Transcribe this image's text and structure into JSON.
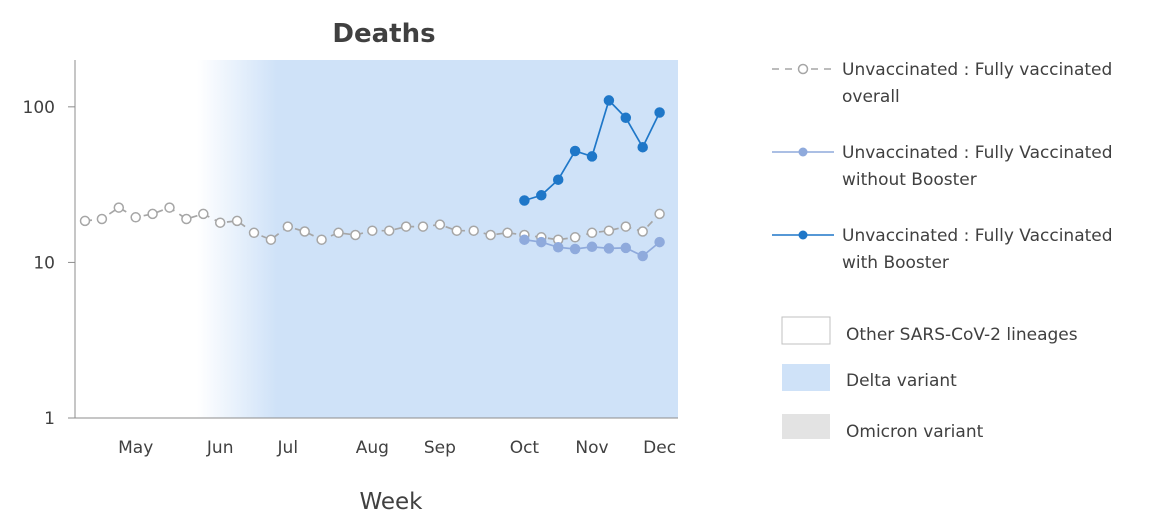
{
  "chart_data": {
    "type": "line",
    "title": "Deaths",
    "xlabel": "Week",
    "ylabel": "",
    "yscale": "log",
    "ylim": [
      1,
      200
    ],
    "yticks": [
      1,
      10,
      100
    ],
    "ytick_labels": [
      "1",
      "10",
      "100"
    ],
    "x_tick_labels": [
      "May",
      "Jun",
      "Jul",
      "Aug",
      "Sep",
      "Oct",
      "Nov",
      "Dec"
    ],
    "x_tick_week_index": [
      3,
      8,
      12,
      17,
      21,
      26,
      30,
      34
    ],
    "week_count": 35,
    "series": [
      {
        "name": "Unvaccinated : Fully vaccinated overall",
        "color": "#a6a6a6",
        "style": "dashed-open-circle",
        "start_week": 0,
        "values": [
          18.5,
          19,
          22.5,
          19.5,
          20.5,
          22.5,
          19,
          20.5,
          18,
          18.5,
          15.5,
          14,
          17,
          15.8,
          14,
          15.5,
          15,
          16,
          16,
          17,
          17,
          17.5,
          16,
          16,
          15,
          15.5,
          15,
          14.5,
          14,
          14.5,
          15.5,
          16,
          17,
          15.8,
          20.5
        ]
      },
      {
        "name": "Unvaccinated : Fully Vaccinated without Booster",
        "color": "#8faadc",
        "style": "solid-filled-circle",
        "start_week": 26,
        "values": [
          14,
          13.5,
          12.5,
          12.2,
          12.6,
          12.3,
          12.4,
          11,
          13.5
        ]
      },
      {
        "name": "Unvaccinated : Fully Vaccinated with Booster",
        "color": "#1f77c8",
        "style": "solid-filled-circle",
        "start_week": 26,
        "values": [
          25,
          27,
          34,
          52,
          48,
          110,
          85,
          55,
          92
        ]
      }
    ],
    "variant_periods": [
      {
        "name": "Other SARS-CoV-2 lineages",
        "color": "#ffffff",
        "start_week": -1,
        "end_week": 6
      },
      {
        "name": "Delta variant",
        "color": "#cfe2f8",
        "start_week": 6,
        "end_week": 35
      }
    ],
    "legend_position": "right",
    "grid": false,
    "legend": {
      "series_labels": [
        [
          "Unvaccinated : Fully vaccinated",
          "overall"
        ],
        [
          "Unvaccinated : Fully Vaccinated",
          "without Booster"
        ],
        [
          "Unvaccinated : Fully Vaccinated",
          "with Booster"
        ]
      ],
      "variants": [
        {
          "label": "Other SARS-CoV-2 lineages",
          "color": "#ffffff",
          "border": "#c0c0c0"
        },
        {
          "label": "Delta variant",
          "color": "#cfe2f8",
          "border": "#cfe2f8"
        },
        {
          "label": "Omicron variant",
          "color": "#e3e3e3",
          "border": "#e3e3e3"
        }
      ]
    }
  }
}
